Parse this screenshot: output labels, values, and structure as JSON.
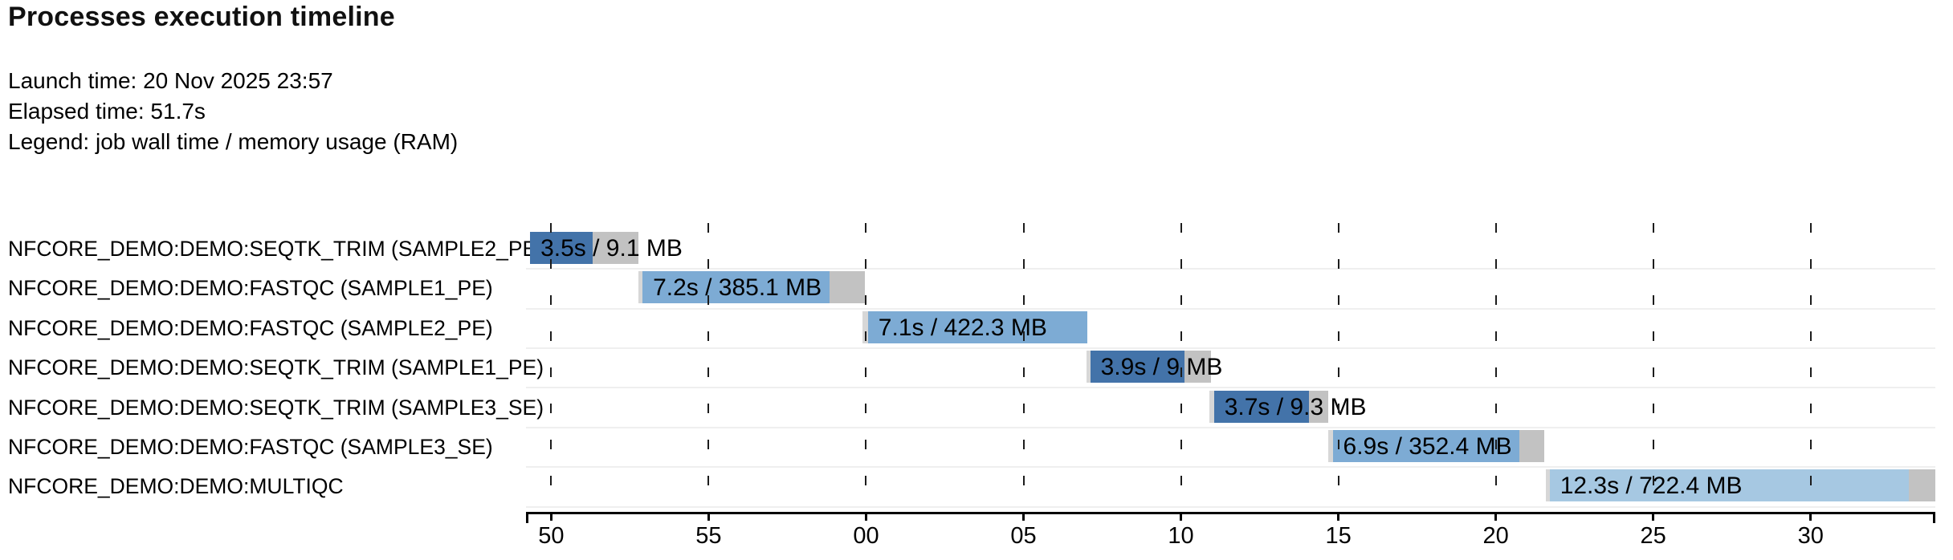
{
  "page": {
    "background": "#ffffff"
  },
  "meta": {
    "launch": "Launch time: 20 Nov 2025 23:57",
    "elapsed": "Elapsed time: 51.7s",
    "legend": "Legend: job wall time / memory usage (RAM)"
  },
  "chart_data": {
    "type": "gantt",
    "title": "Processes execution timeline",
    "x_axis": {
      "unit": "clock seconds (mm:ss)",
      "domain_start": 49.2,
      "domain_end": 93.96,
      "grid": "dashed-vertical",
      "ticks": [
        {
          "t": 50,
          "label": "50"
        },
        {
          "t": 55,
          "label": "55"
        },
        {
          "t": 60,
          "label": "00"
        },
        {
          "t": 65,
          "label": "05"
        },
        {
          "t": 70,
          "label": "10"
        },
        {
          "t": 75,
          "label": "15"
        },
        {
          "t": 80,
          "label": "20"
        },
        {
          "t": 85,
          "label": "25"
        },
        {
          "t": 90,
          "label": "30"
        }
      ]
    },
    "colors": {
      "seqtk_trim": "#4373a9",
      "fastqc": "#7dabd4",
      "multiqc": "#a6c8e2",
      "pending": "#d7d7d7",
      "post": "#c2c2c2",
      "separator": "#efefef",
      "grid": "#1c1c1c",
      "axis": "#000000"
    },
    "rows": [
      {
        "process": "NFCORE_DEMO:DEMO:SEQTK_TRIM (SAMPLE2_PE)",
        "bar_label": "3.5s / 9.1 MB",
        "start": 49.33,
        "pending": 0.0,
        "run": 1.99,
        "post": 1.45,
        "color": "seqtk_trim",
        "wall_time_s": 3.5,
        "memory_mb": 9.1
      },
      {
        "process": "NFCORE_DEMO:DEMO:FASTQC (SAMPLE1_PE)",
        "bar_label": "7.2s / 385.1 MB",
        "start": 52.77,
        "pending": 0.13,
        "run": 5.94,
        "post": 1.12,
        "color": "fastqc",
        "wall_time_s": 7.2,
        "memory_mb": 385.1
      },
      {
        "process": "NFCORE_DEMO:DEMO:FASTQC (SAMPLE2_PE)",
        "bar_label": "7.1s / 422.3 MB",
        "start": 59.88,
        "pending": 0.18,
        "run": 6.96,
        "post": 0.0,
        "color": "fastqc",
        "wall_time_s": 7.1,
        "memory_mb": 422.3
      },
      {
        "process": "NFCORE_DEMO:DEMO:SEQTK_TRIM (SAMPLE1_PE)",
        "bar_label": "3.9s / 9 MB",
        "start": 67.0,
        "pending": 0.12,
        "run": 2.99,
        "post": 0.84,
        "color": "seqtk_trim",
        "wall_time_s": 3.9,
        "memory_mb": 9
      },
      {
        "process": "NFCORE_DEMO:DEMO:SEQTK_TRIM (SAMPLE3_SE)",
        "bar_label": "3.7s / 9.3 MB",
        "start": 70.9,
        "pending": 0.15,
        "run": 3.01,
        "post": 0.61,
        "color": "seqtk_trim",
        "wall_time_s": 3.7,
        "memory_mb": 9.3
      },
      {
        "process": "NFCORE_DEMO:DEMO:FASTQC (SAMPLE3_SE)",
        "bar_label": "6.9s / 352.4 MB",
        "start": 74.67,
        "pending": 0.15,
        "run": 5.92,
        "post": 0.79,
        "color": "fastqc",
        "wall_time_s": 6.9,
        "memory_mb": 352.4
      },
      {
        "process": "NFCORE_DEMO:DEMO:MULTIQC",
        "bar_label": "12.3s / 722.4 MB",
        "start": 81.58,
        "pending": 0.13,
        "run": 11.42,
        "post": 0.82,
        "color": "multiqc",
        "wall_time_s": 12.3,
        "memory_mb": 722.4
      }
    ]
  }
}
